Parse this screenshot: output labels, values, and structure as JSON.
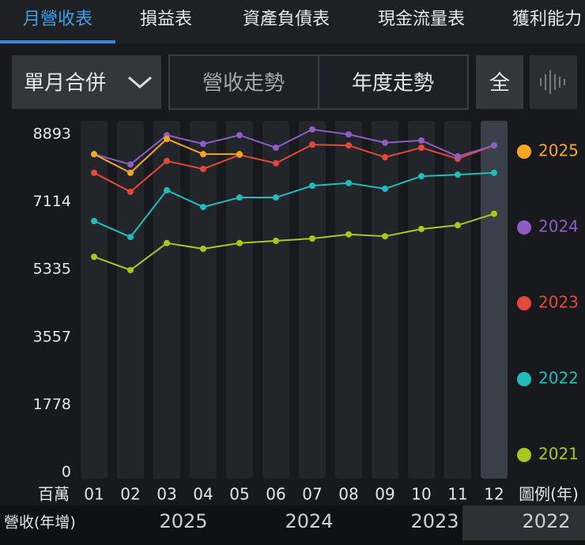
{
  "tabs": [
    "月營收表",
    "損益表",
    "資產負債表",
    "現金流量表",
    "獲利能力"
  ],
  "controls": {
    "dropdown": "單月合併",
    "buttons": [
      "營收走勢",
      "年度走勢",
      "全"
    ]
  },
  "chart_data": {
    "type": "line",
    "y_unit": "百萬",
    "legend_title": "圖例(年)",
    "categories": [
      "01",
      "02",
      "03",
      "04",
      "05",
      "06",
      "07",
      "08",
      "09",
      "10",
      "11",
      "12"
    ],
    "ylim": [
      0,
      8893
    ],
    "yticks": [
      0,
      1778,
      3557,
      5335,
      7114,
      8893
    ],
    "series": [
      {
        "name": "2025",
        "color": "#f5a623",
        "values": [
          8370,
          7880,
          8770,
          8370,
          8370,
          null,
          null,
          null,
          null,
          null,
          null,
          null
        ]
      },
      {
        "name": "2024",
        "color": "#8e5cc4",
        "values": [
          8370,
          8100,
          8870,
          8640,
          8870,
          8540,
          9020,
          8890,
          8670,
          8730,
          8310,
          8600
        ]
      },
      {
        "name": "2023",
        "color": "#e5483b",
        "values": [
          7880,
          7380,
          8190,
          7980,
          8350,
          8130,
          8620,
          8600,
          8290,
          8540,
          8250,
          8600
        ]
      },
      {
        "name": "2022",
        "color": "#1fbdbd",
        "values": [
          6610,
          6190,
          7420,
          6980,
          7230,
          7230,
          7540,
          7610,
          7460,
          7790,
          7830,
          7880
        ]
      },
      {
        "name": "2021",
        "color": "#a8c81c",
        "values": [
          5670,
          5320,
          6030,
          5880,
          6030,
          6090,
          6150,
          6260,
          6210,
          6400,
          6500,
          6800
        ]
      }
    ]
  },
  "footer": {
    "label": "營收(年增)",
    "items": [
      "2025",
      "2024",
      "2023",
      "2022"
    ]
  }
}
